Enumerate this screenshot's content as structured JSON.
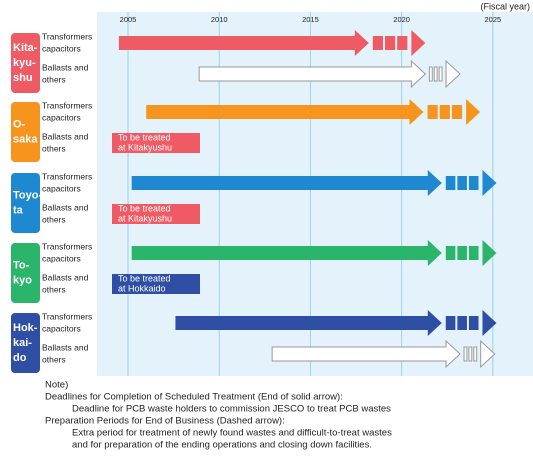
{
  "chart_data": {
    "type": "timeline",
    "x_label": "(Fiscal year)",
    "xlim": [
      2003.3,
      2027.2
    ],
    "xticks": [
      2005,
      2010,
      2015,
      2020,
      2025
    ],
    "groups": [
      {
        "name_lines": [
          "Kita-",
          "kyu-",
          "shu"
        ],
        "color": "#ef5b65",
        "rows": [
          {
            "label_lines": [
              "Transformers",
              "capacitors"
            ],
            "start": 2004.5,
            "end": 2018.2,
            "dashed_end": 2021.3
          },
          {
            "label_lines": [
              "Ballasts and",
              "others"
            ],
            "start": 2008.9,
            "end": 2021.3,
            "dashed_end": 2023.2,
            "hollow": true
          }
        ]
      },
      {
        "name_lines": [
          "O-",
          "saka"
        ],
        "color": "#f7941d",
        "rows": [
          {
            "label_lines": [
              "Transformers",
              "capacitors"
            ],
            "start": 2006.0,
            "end": 2021.2,
            "dashed_end": 2024.3
          },
          {
            "label_lines": [
              "Ballasts and",
              "others"
            ],
            "note_lines": [
              "To be treated",
              "at Kitakyushu"
            ],
            "note_color": "#ef5b65"
          }
        ]
      },
      {
        "name_lines": [
          "Toyo-",
          "ta"
        ],
        "color": "#1e88d0",
        "rows": [
          {
            "label_lines": [
              "Transformers",
              "capacitors"
            ],
            "start": 2005.2,
            "end": 2022.2,
            "dashed_end": 2025.2
          },
          {
            "label_lines": [
              "Ballasts and",
              "others"
            ],
            "note_lines": [
              "To be treated",
              "at Kitakyushu"
            ],
            "note_color": "#ef5b65"
          }
        ]
      },
      {
        "name_lines": [
          "To-",
          "kyo"
        ],
        "color": "#2bb56a",
        "rows": [
          {
            "label_lines": [
              "Transformers",
              "capacitors"
            ],
            "start": 2005.2,
            "end": 2022.2,
            "dashed_end": 2025.2
          },
          {
            "label_lines": [
              "Ballasts and",
              "others"
            ],
            "note_lines": [
              "To be treated",
              "at Hokkaido"
            ],
            "note_color": "#2e4fa3"
          }
        ]
      },
      {
        "name_lines": [
          "Hok-",
          "kai-",
          "do"
        ],
        "color": "#2e4fa3",
        "rows": [
          {
            "label_lines": [
              "Transformers",
              "capacitors"
            ],
            "start": 2007.6,
            "end": 2022.2,
            "dashed_end": 2025.2
          },
          {
            "label_lines": [
              "Ballasts and",
              "others"
            ],
            "start": 2012.9,
            "end": 2023.2,
            "dashed_end": 2025.1,
            "hollow": true
          }
        ]
      }
    ]
  },
  "notes": {
    "title": "Note)",
    "items": [
      {
        "heading": "Deadlines for Completion of Scheduled Treatment (End of solid arrow):",
        "details": [
          "Deadline for PCB waste holders to commission JESCO to treat PCB wastes"
        ]
      },
      {
        "heading": "Preparation Periods for End of Business (Dashed arrow):",
        "details": [
          "Extra period for treatment of newly found wastes and difficult-to-treat wastes",
          "and for preparation of the ending operations and closing down facilities."
        ]
      }
    ]
  }
}
